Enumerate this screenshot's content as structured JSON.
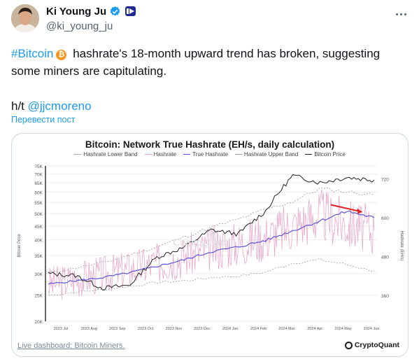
{
  "author": {
    "display_name": "Ki Young Ju",
    "handle": "@ki_young_ju"
  },
  "tweet": {
    "hashtag": "#Bitcoin",
    "emoji": "₿",
    "line1_rest": " hashrate's 18-month upward trend has broken, suggesting",
    "line2": "some miners are capitulating.",
    "ht_prefix": "h/t ",
    "mention": "@jjcmoreno"
  },
  "translate_label": "Перевести пост",
  "media": {
    "caption": "Live dashboard: Bitcoin Miners.",
    "brand": "CryptoQuant"
  },
  "colors": {
    "link": "#1d9bf0",
    "hashrate": "#e8a0c8",
    "true_hashrate": "#5b57d8",
    "btc_price": "#222222",
    "bands": "#999999",
    "arrow": "#e02020"
  },
  "chart_data": {
    "type": "line",
    "title": "Bitcoin: Network True Hashrate (EH/s, daily calculation)",
    "ylabel": "Bitcoin Price",
    "y2label": "Hashrate (EH/s)",
    "yscale": "log",
    "y_ticks": [
      "75K",
      "70K",
      "65K",
      "60K",
      "55K",
      "50K",
      "45K",
      "40K",
      "35K",
      "30K",
      "25K",
      "20K"
    ],
    "y2_ticks": [
      "720",
      "600",
      "480",
      "360"
    ],
    "x_ticks": [
      "2023 Jul",
      "2023 Aug",
      "2023 Sep",
      "2023 Oct",
      "2023 Nov",
      "2023 Dec",
      "2024 Jan",
      "2024 Feb",
      "2024 Mar",
      "2024 Apr",
      "2024 May",
      "2024 Jun"
    ],
    "legend_position": "top-center",
    "grid": true,
    "series": [
      {
        "name": "Hashrate Lower Band",
        "style": "dashed",
        "values": [
          360,
          370,
          378,
          388,
          400,
          405,
          415,
          420,
          432,
          460,
          470,
          455,
          435
        ]
      },
      {
        "name": "Hashrate",
        "style": "noisy",
        "values": [
          395,
          410,
          425,
          440,
          460,
          480,
          505,
          520,
          540,
          575,
          610,
          580,
          560
        ]
      },
      {
        "name": "True Hashrate",
        "style": "solid",
        "values": [
          395,
          405,
          415,
          430,
          450,
          470,
          495,
          510,
          530,
          560,
          590,
          620,
          600
        ]
      },
      {
        "name": "Hashrate Upper Band",
        "style": "dashed",
        "values": [
          430,
          445,
          460,
          485,
          510,
          540,
          570,
          595,
          625,
          650,
          690,
          680,
          670
        ]
      },
      {
        "name": "Bitcoin Price",
        "style": "solid",
        "values": [
          30000,
          29500,
          26500,
          27200,
          34500,
          37500,
          43500,
          42000,
          51000,
          69000,
          65000,
          68000,
          66500
        ]
      }
    ],
    "x_dates": [
      "2023-06",
      "2023-07",
      "2023-08",
      "2023-09",
      "2023-10",
      "2023-11",
      "2023-12",
      "2024-01",
      "2024-02",
      "2024-03",
      "2024-04",
      "2024-05",
      "2024-06"
    ]
  }
}
